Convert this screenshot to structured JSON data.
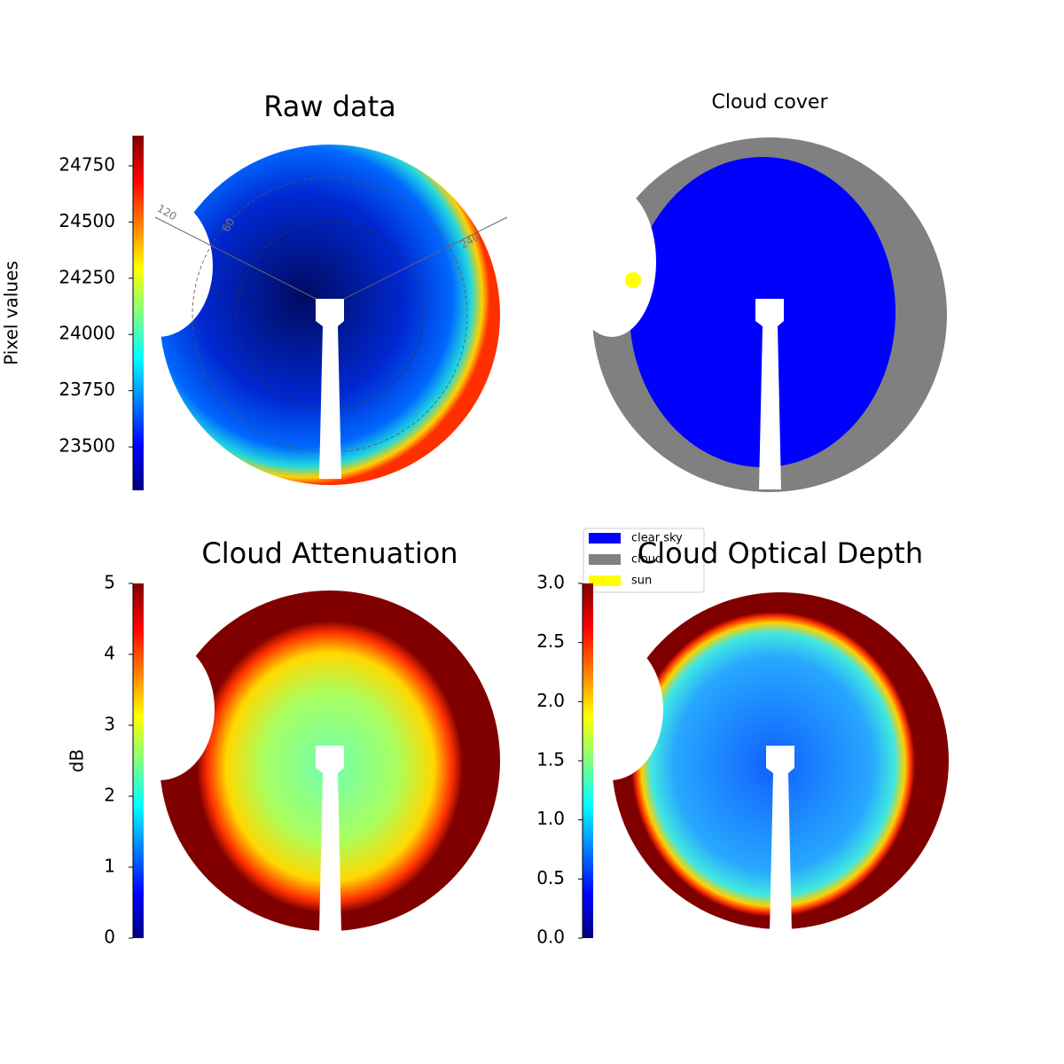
{
  "chart_data": [
    {
      "type": "image",
      "title": "Raw data",
      "colorbar": {
        "label": "Pixel values",
        "lim": [
          23307,
          24884
        ],
        "ticks": [
          23500,
          23750,
          24000,
          24250,
          24500,
          24750
        ]
      },
      "polar_labels": [
        "120",
        "60",
        "240"
      ]
    },
    {
      "type": "image",
      "title": "Cloud cover",
      "series": [
        {
          "name": "clear sky",
          "color": "#0000ff"
        },
        {
          "name": "cloud",
          "color": "#808080"
        },
        {
          "name": "sun",
          "color": "#ffff00"
        }
      ]
    },
    {
      "type": "image",
      "title": "Cloud Attenuation",
      "colorbar": {
        "label": "dB",
        "lim": [
          0,
          5
        ],
        "ticks": [
          0,
          1,
          2,
          3,
          4,
          5
        ]
      }
    },
    {
      "type": "image",
      "title": "Cloud Optical Depth",
      "colorbar": {
        "lim": [
          0,
          3
        ],
        "ticks": [
          {
            "value": 0,
            "label": "0.0"
          },
          0.5,
          {
            "value": 1,
            "label": "1.0"
          },
          1.5,
          {
            "value": 2,
            "label": "2.0"
          },
          2.5,
          {
            "value": 3,
            "label": "3.0"
          }
        ]
      }
    }
  ]
}
